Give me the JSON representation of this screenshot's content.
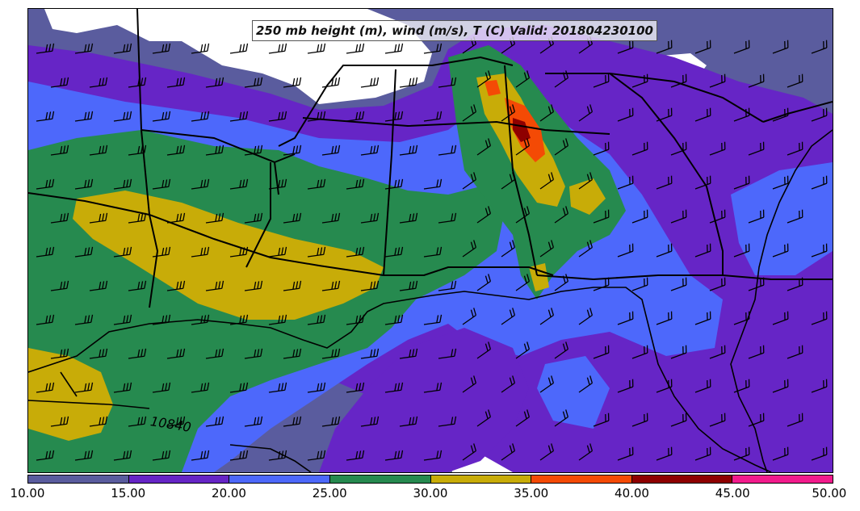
{
  "title": "250 mb height (m), wind (m/s), T (C) Valid: 201804230100",
  "contour_label": "10840",
  "colorbar": {
    "colors": [
      "#5a5c9e",
      "#6625c6",
      "#4d68fb",
      "#268a4f",
      "#c8ac08",
      "#f44a05",
      "#8e0000",
      "#f21b8c"
    ],
    "ticks": [
      "10.00",
      "15.00",
      "20.00",
      "25.00",
      "30.00",
      "35.00",
      "40.00",
      "45.00",
      "50.00"
    ]
  },
  "map_colors": {
    "c10": "#5a5c9e",
    "c15": "#6625c6",
    "c20": "#4d68fb",
    "c25": "#268a4f",
    "c30": "#c8ac08",
    "c35": "#f44a05",
    "c40": "#8e0000",
    "below": "#ffffff"
  }
}
